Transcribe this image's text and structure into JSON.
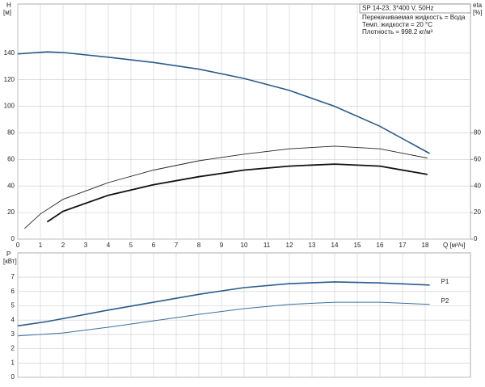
{
  "chart_data": [
    {
      "type": "line",
      "y_label": "H",
      "y_unit": "[м]",
      "y2_label": "eta",
      "y2_unit": "[%]",
      "x_label": "Q [м³/ч]",
      "info_title": "SP 14-23, 3*400 V, 50Hz",
      "info_lines": [
        "Перекачиваемая жидкость = Вода",
        "Темп. жидкости = 20 °C",
        "Плотность = 998.2 кг/м³"
      ],
      "xlim": [
        0,
        20
      ],
      "xticks": [
        0,
        1,
        2,
        3,
        4,
        5,
        6,
        7,
        8,
        9,
        10,
        11,
        12,
        13,
        14,
        15,
        16,
        17,
        18
      ],
      "ylim": [
        0,
        177
      ],
      "yticks": [
        0,
        20,
        40,
        60,
        80,
        100,
        120,
        140
      ],
      "y2lim": [
        0,
        177
      ],
      "y2ticks": [
        0,
        20,
        40,
        60,
        80
      ],
      "grid": true,
      "series": [
        {
          "color": "#2a5b8c",
          "width": 1.6,
          "x": [
            0,
            1.3,
            2,
            4,
            6,
            8,
            10,
            12,
            14,
            16,
            18.2
          ],
          "values": [
            139.5,
            141,
            140.5,
            137,
            133,
            128,
            121,
            112,
            100,
            85,
            64.5
          ]
        },
        {
          "color": "#222222",
          "width": 0.9,
          "axis": "y2",
          "x": [
            0.3,
            1,
            2,
            4,
            6,
            8,
            10,
            12,
            14,
            16,
            18.1
          ],
          "values": [
            8,
            19,
            30,
            42.6,
            52,
            59,
            64,
            68,
            70,
            68,
            61
          ]
        },
        {
          "color": "#111111",
          "width": 1.8,
          "axis": "y2",
          "x": [
            1.3,
            2,
            4,
            6,
            8,
            10,
            12,
            14,
            16,
            18.1
          ],
          "values": [
            13,
            21,
            33,
            41,
            47,
            52,
            55,
            56.5,
            55,
            48.7
          ]
        }
      ]
    },
    {
      "type": "line",
      "y_label": "P",
      "y_unit": "[кВт]",
      "xlim": [
        0,
        20
      ],
      "xticks": [
        0,
        1,
        2,
        3,
        4,
        5,
        6,
        7,
        8,
        9,
        10,
        11,
        12,
        13,
        14,
        15,
        16,
        17,
        18
      ],
      "ylim": [
        0,
        8.7
      ],
      "yticks": [
        0,
        1,
        2,
        3,
        4,
        5,
        6,
        7
      ],
      "grid": true,
      "series": [
        {
          "name": "P1",
          "color": "#2a5b8c",
          "width": 1.6,
          "x": [
            0,
            1.3,
            4,
            6,
            8,
            10,
            12,
            14,
            16,
            18.2
          ],
          "values": [
            3.6,
            3.9,
            4.7,
            5.25,
            5.8,
            6.27,
            6.55,
            6.67,
            6.6,
            6.45
          ]
        },
        {
          "name": "P2",
          "color": "#3a6f9f",
          "width": 1.0,
          "x": [
            0,
            2,
            4,
            6,
            8,
            10,
            12,
            14,
            16,
            18.2
          ],
          "values": [
            2.9,
            3.1,
            3.5,
            3.95,
            4.4,
            4.8,
            5.1,
            5.25,
            5.25,
            5.1
          ]
        }
      ]
    }
  ]
}
